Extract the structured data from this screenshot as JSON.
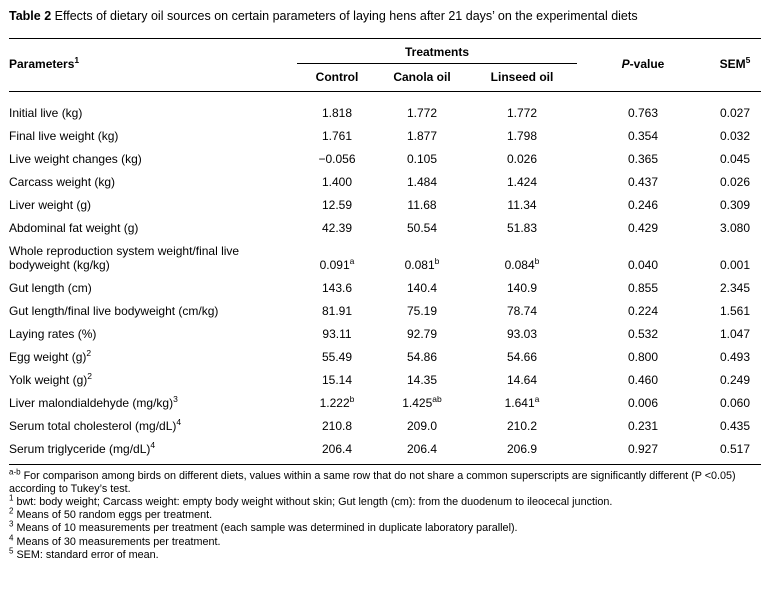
{
  "title": {
    "label": "Table 2",
    "text": "Effects of dietary oil sources on certain parameters of laying hens after 21 days’ on the experimental diets"
  },
  "table": {
    "header": {
      "parameters": "Parameters",
      "parameters_sup": "1",
      "treatments": "Treatments",
      "columns": [
        "Control",
        "Canola oil",
        "Linseed oil"
      ],
      "p_italic": "P",
      "p_rest": "-value",
      "sem": "SEM",
      "sem_sup": "5"
    },
    "rows": [
      {
        "param": "Initial live (kg)",
        "cells": [
          "1.818",
          "1.772",
          "1.772",
          "0.763",
          "0.027"
        ]
      },
      {
        "param": "Final live weight (kg)",
        "cells": [
          "1.761",
          "1.877",
          "1.798",
          "0.354",
          "0.032"
        ]
      },
      {
        "param": "Live weight changes (kg)",
        "cells": [
          "−0.056",
          "0.105",
          "0.026",
          "0.365",
          "0.045"
        ]
      },
      {
        "param": "Carcass weight (kg)",
        "cells": [
          "1.400",
          "1.484",
          "1.424",
          "0.437",
          "0.026"
        ]
      },
      {
        "param": "Liver weight (g)",
        "cells": [
          "12.59",
          "11.68",
          "11.34",
          "0.246",
          "0.309"
        ]
      },
      {
        "param": "Abdominal fat weight (g)",
        "cells": [
          "42.39",
          "50.54",
          "51.83",
          "0.429",
          "3.080"
        ]
      },
      {
        "param": "Whole reproduction system weight/final live bodyweight (kg/kg)",
        "cells": [
          {
            "v": "0.091",
            "s": "a"
          },
          {
            "v": "0.081",
            "s": "b"
          },
          {
            "v": "0.084",
            "s": "b"
          },
          "0.040",
          "0.001"
        ]
      },
      {
        "param": "Gut length (cm)",
        "cells": [
          "143.6",
          "140.4",
          "140.9",
          "0.855",
          "2.345"
        ]
      },
      {
        "param": "Gut length/final live bodyweight (cm/kg)",
        "cells": [
          "81.91",
          "75.19",
          "78.74",
          "0.224",
          "1.561"
        ]
      },
      {
        "param": "Laying rates (%)",
        "cells": [
          "93.11",
          "92.79",
          "93.03",
          "0.532",
          "1.047"
        ]
      },
      {
        "param": "Egg weight (g)",
        "param_sup": "2",
        "cells": [
          "55.49",
          "54.86",
          "54.66",
          "0.800",
          "0.493"
        ]
      },
      {
        "param": "Yolk weight (g)",
        "param_sup": "2",
        "cells": [
          "15.14",
          "14.35",
          "14.64",
          "0.460",
          "0.249"
        ]
      },
      {
        "param": "Liver malondialdehyde (mg/kg)",
        "param_sup": "3",
        "cells": [
          {
            "v": "1.222",
            "s": "b"
          },
          {
            "v": "1.425",
            "s": "ab"
          },
          {
            "v": "1.641",
            "s": "a"
          },
          "0.006",
          "0.060"
        ]
      },
      {
        "param": "Serum total cholesterol (mg/dL)",
        "param_sup": "4",
        "cells": [
          "210.8",
          "209.0",
          "210.2",
          "0.231",
          "0.435"
        ]
      },
      {
        "param": "Serum triglyceride (mg/dL)",
        "param_sup": "4",
        "cells": [
          "206.4",
          "206.4",
          "206.9",
          "0.927",
          "0.517"
        ]
      }
    ]
  },
  "footnotes": [
    {
      "marker": "a-b",
      "text": "For comparison among birds on different diets, values within a same row that do not share a common superscripts are significantly different (P <0.05) according to Tukey’s test."
    },
    {
      "marker": "1",
      "text": "bwt: body weight; Carcass weight: empty body weight without skin; Gut length (cm): from the duodenum to ileocecal junction."
    },
    {
      "marker": "2",
      "text": "Means of 50 random eggs per treatment."
    },
    {
      "marker": "3",
      "text": "Means of 10 measurements per treatment (each sample was determined in duplicate laboratory parallel)."
    },
    {
      "marker": "4",
      "text": "Means of 30 measurements per treatment."
    },
    {
      "marker": "5",
      "text": "SEM: standard error of mean."
    }
  ]
}
